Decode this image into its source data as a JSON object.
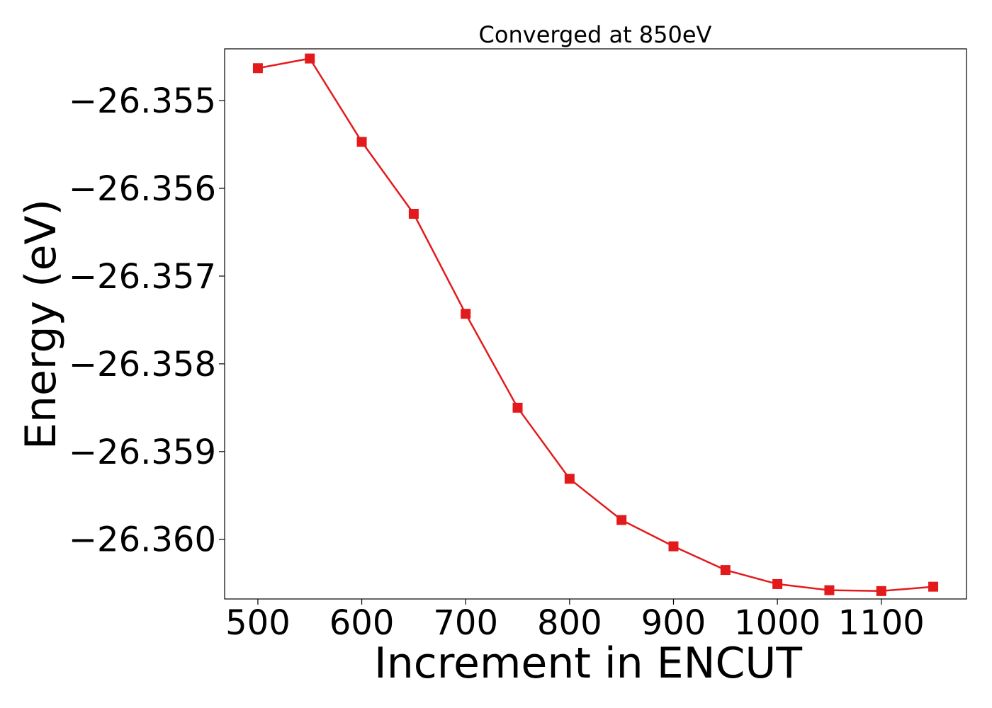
{
  "chart_data": {
    "type": "line",
    "title": "Converged at 850eV",
    "xlabel": "Increment in ENCUT",
    "ylabel": "Energy (eV)",
    "x": [
      500,
      550,
      600,
      650,
      700,
      750,
      800,
      850,
      900,
      950,
      1000,
      1050,
      1100,
      1150
    ],
    "series": [
      {
        "values": [
          -26.35463,
          -26.35452,
          -26.35547,
          -26.35629,
          -26.35743,
          -26.3585,
          -26.35931,
          -26.35978,
          -26.36008,
          -26.36035,
          -26.36051,
          -26.36058,
          -26.36059,
          -26.36054
        ],
        "color": "#e31a1c",
        "marker": "square"
      }
    ],
    "xlim": [
      468,
      1182
    ],
    "ylim": [
      -26.36068,
      -26.35441
    ],
    "xticks": [
      500,
      600,
      700,
      800,
      900,
      1000,
      1100
    ],
    "xtick_labels": [
      "500",
      "600",
      "700",
      "800",
      "900",
      "1000",
      "1100"
    ],
    "yticks": [
      -26.355,
      -26.356,
      -26.357,
      -26.358,
      -26.359,
      -26.36
    ],
    "ytick_labels": [
      "−26.355",
      "−26.356",
      "−26.357",
      "−26.358",
      "−26.359",
      "−26.360"
    ],
    "grid": false,
    "legend": "none"
  }
}
